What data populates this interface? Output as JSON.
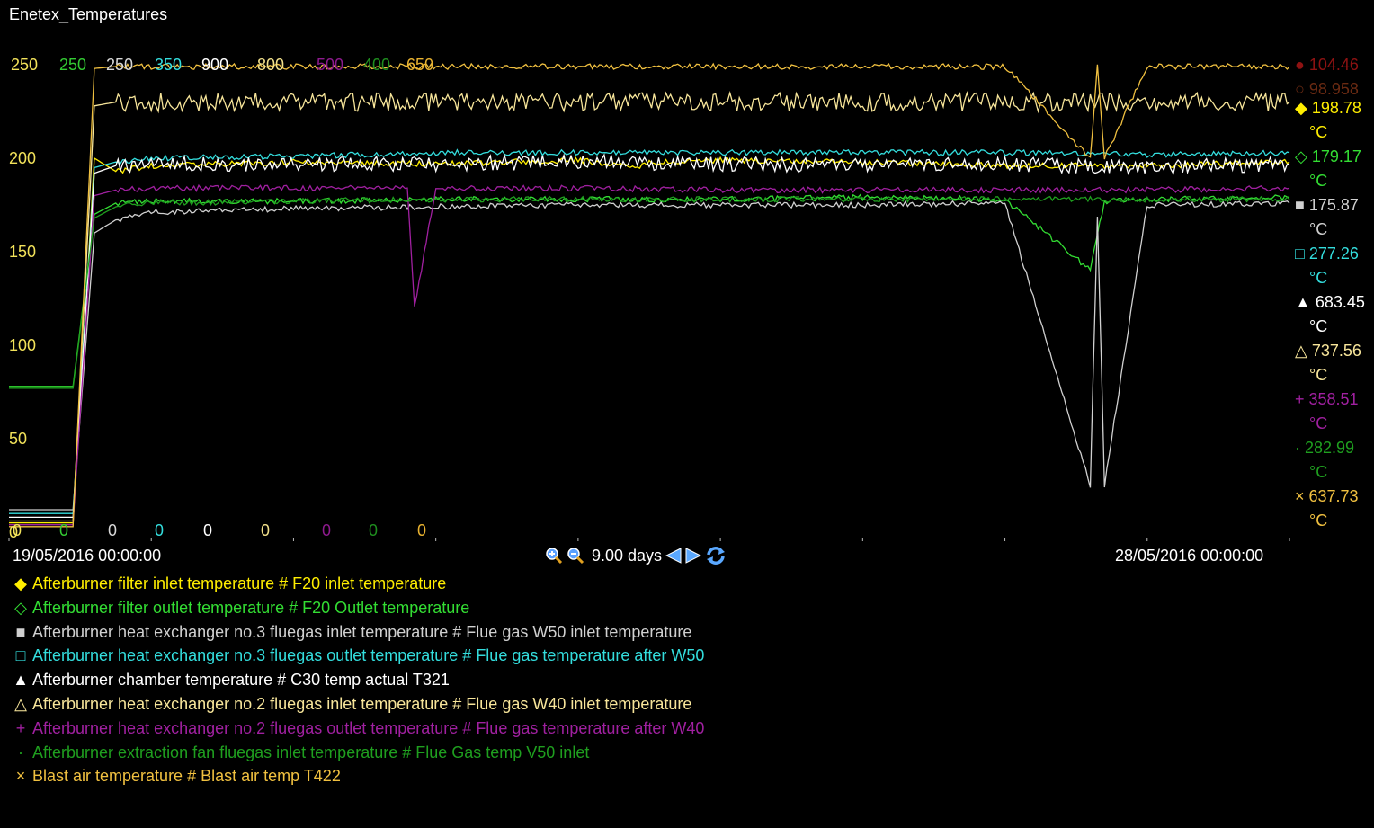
{
  "window": {
    "title": "Enetex_Temperatures"
  },
  "chart_data": {
    "type": "line",
    "ylim": [
      0,
      250
    ],
    "yticks": [
      "0",
      "50",
      "100",
      "150",
      "200",
      "250"
    ],
    "grid": false,
    "x_start": "19/05/2016 00:00:00",
    "x_end": "28/05/2016 00:00:00",
    "x_range_days": 9.0,
    "top_scale_labels": [
      {
        "text": "250",
        "color": "#f2e25a"
      },
      {
        "text": "250",
        "color": "#33cc33"
      },
      {
        "text": "250",
        "color": "#d8d8d8"
      },
      {
        "text": "350",
        "color": "#33dddd"
      },
      {
        "text": "900",
        "color": "#ffffff"
      },
      {
        "text": "800",
        "color": "#f2e08a"
      },
      {
        "text": "500",
        "color": "#8e1a8e"
      },
      {
        "text": "400",
        "color": "#1f8f1f"
      },
      {
        "text": "650",
        "color": "#e8b230"
      }
    ],
    "bottom_scale_labels": [
      {
        "text": "0",
        "color": "#f2e25a"
      },
      {
        "text": "0",
        "color": "#33cc33"
      },
      {
        "text": "0",
        "color": "#d8d8d8"
      },
      {
        "text": "0",
        "color": "#33dddd"
      },
      {
        "text": "0",
        "color": "#ffffff"
      },
      {
        "text": "0",
        "color": "#f2e08a"
      },
      {
        "text": "0",
        "color": "#8e1a8e"
      },
      {
        "text": "0",
        "color": "#1f8f1f"
      },
      {
        "text": "0",
        "color": "#e8b230"
      }
    ],
    "series": [
      {
        "name": "Afterburner filter inlet temperature # F20 inlet temperature",
        "symbol": "◆",
        "color": "#ffee00",
        "current": "198.78",
        "unit": "°C",
        "x": [
          0,
          0.45,
          0.6,
          0.75,
          1.0,
          2.0,
          3.0,
          4.0,
          4.4,
          4.5,
          5.0,
          6.0,
          7.0,
          8.0,
          9.0
        ],
        "y": [
          5,
          5,
          200,
          193,
          196,
          198,
          197,
          199,
          195,
          198,
          199,
          198,
          196,
          196,
          198
        ]
      },
      {
        "name": "Afterburner filter outlet temperature # F20 Outlet temperature",
        "symbol": "◇",
        "color": "#33dd33",
        "current": "179.17",
        "unit": "°C",
        "x": [
          0,
          0.45,
          0.6,
          0.75,
          1.0,
          2.0,
          3.0,
          4.0,
          5.0,
          6.0,
          7.0,
          7.6,
          7.7,
          8.0,
          9.0
        ],
        "y": [
          78,
          78,
          170,
          176,
          177,
          177,
          178,
          178,
          178,
          179,
          178,
          140,
          177,
          178,
          179
        ]
      },
      {
        "name": "Afterburner heat exchanger no.3 fluegas inlet temperature # Flue gas W50 inlet temperature",
        "symbol": "■",
        "color": "#d0d0d0",
        "current": "175.87",
        "unit": "°C",
        "x": [
          0,
          0.45,
          0.6,
          0.75,
          1.0,
          2.0,
          3.0,
          4.0,
          5.0,
          6.0,
          7.0,
          7.6,
          7.65,
          7.7,
          8.0,
          9.0
        ],
        "y": [
          12,
          12,
          160,
          167,
          171,
          173,
          174,
          175,
          175,
          175,
          176,
          25,
          170,
          25,
          175,
          176
        ]
      },
      {
        "name": "Afterburner heat exchanger no.3 fluegas outlet temperature # Flue gas temperature after W50",
        "symbol": "□",
        "color": "#33dddd",
        "current": "277.26",
        "unit": "°C",
        "x": [
          0,
          0.45,
          0.6,
          0.75,
          1.0,
          2.0,
          3.0,
          4.0,
          5.0,
          6.0,
          7.0,
          8.0,
          9.0
        ],
        "y": [
          10,
          10,
          195,
          198,
          200,
          201,
          203,
          203,
          203,
          203,
          203,
          202,
          203
        ]
      },
      {
        "name": "Afterburner chamber temperature # C30  temp actual T321",
        "symbol": "▲",
        "color": "#ffffff",
        "current": "683.45",
        "unit": "°C",
        "x": [
          0,
          0.45,
          0.6,
          0.75,
          1.0,
          2.0,
          3.0,
          4.0,
          5.0,
          6.0,
          7.0,
          8.0,
          9.0
        ],
        "y": [
          8,
          8,
          192,
          196,
          197,
          197,
          197,
          198,
          197,
          196,
          197,
          195,
          197
        ]
      },
      {
        "name": "Afterburner heat exchanger no.2 fluegas inlet temperature # Flue gas W40 inlet temperature",
        "symbol": "△",
        "color": "#f7e59a",
        "current": "737.56",
        "unit": "°C",
        "x": [
          0,
          0.45,
          0.6,
          0.75,
          1.0,
          2.0,
          3.0,
          4.0,
          5.0,
          6.0,
          7.0,
          8.0,
          9.0
        ],
        "y": [
          6,
          6,
          228,
          230,
          230,
          230,
          230,
          230,
          230,
          230,
          230,
          230,
          230
        ]
      },
      {
        "name": "Afterburner heat exchanger no.2 fluegas outlet temperature # Flue gas temperature after W40",
        "symbol": "+",
        "color": "#a020a0",
        "current": "358.51",
        "unit": "°C",
        "x": [
          0,
          0.45,
          0.6,
          0.75,
          1.0,
          2.0,
          2.8,
          2.85,
          3.0,
          4.0,
          5.0,
          6.0,
          7.0,
          8.0,
          9.0
        ],
        "y": [
          4,
          4,
          180,
          183,
          184,
          184,
          184,
          120,
          184,
          184,
          183,
          183,
          183,
          183,
          184
        ]
      },
      {
        "name": "Afterburner extraction fan fluegas inlet temperature # Flue Gas temp V50 inlet",
        "symbol": "·",
        "color": "#1f9f1f",
        "current": "282.99",
        "unit": "°C",
        "x": [
          0,
          0.45,
          0.6,
          0.75,
          1.0,
          2.0,
          3.0,
          4.0,
          5.0,
          6.0,
          7.0,
          8.0,
          9.0
        ],
        "y": [
          77,
          77,
          168,
          174,
          176,
          177,
          178,
          178,
          178,
          178,
          178,
          178,
          178
        ]
      },
      {
        "name": "Blast air temperature # Blast air temp T422",
        "symbol": "×",
        "color": "#f0c040",
        "current": "637.73",
        "unit": "°C",
        "x": [
          0,
          0.45,
          0.6,
          0.75,
          1.0,
          2.0,
          3.0,
          4.0,
          5.0,
          6.0,
          7.0,
          7.6,
          7.65,
          7.7,
          8.0,
          9.0
        ],
        "y": [
          3,
          3,
          248,
          249,
          249,
          249,
          249,
          249,
          249,
          249,
          249,
          200,
          249,
          200,
          249,
          249
        ]
      }
    ]
  },
  "controls": {
    "zoom_in": "zoom-in",
    "zoom_out": "zoom-out",
    "range_label": "9.00 days",
    "prev": "back",
    "next": "forward",
    "refresh": "refresh"
  }
}
